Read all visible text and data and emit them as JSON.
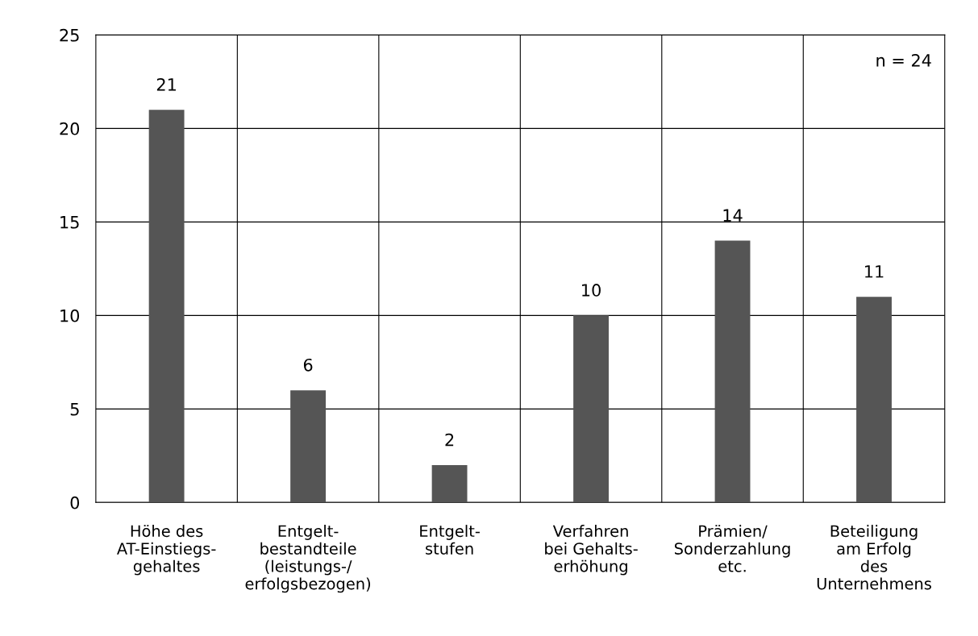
{
  "chart_data": {
    "type": "bar",
    "categories": [
      "Höhe des\nAT-Einstiegs-\ngehaltes",
      "Entgelt-\nbestandteile\n(leistungs-/\nerfolgsbezogen)",
      "Entgelt-\nstufen",
      "Verfahren\nbei Gehalts-\nerhöhung",
      "Prämien/\nSonderzahlung\netc.",
      "Beteiligung\nam Erfolg\ndes\nUnternehmens"
    ],
    "values": [
      21,
      6,
      2,
      10,
      14,
      11
    ],
    "color": "#555555",
    "ylim": [
      0,
      25
    ],
    "yticks": [
      0,
      5,
      10,
      15,
      20,
      25
    ],
    "grid": true,
    "data_labels": true,
    "annotations": [
      "n = 24"
    ]
  }
}
